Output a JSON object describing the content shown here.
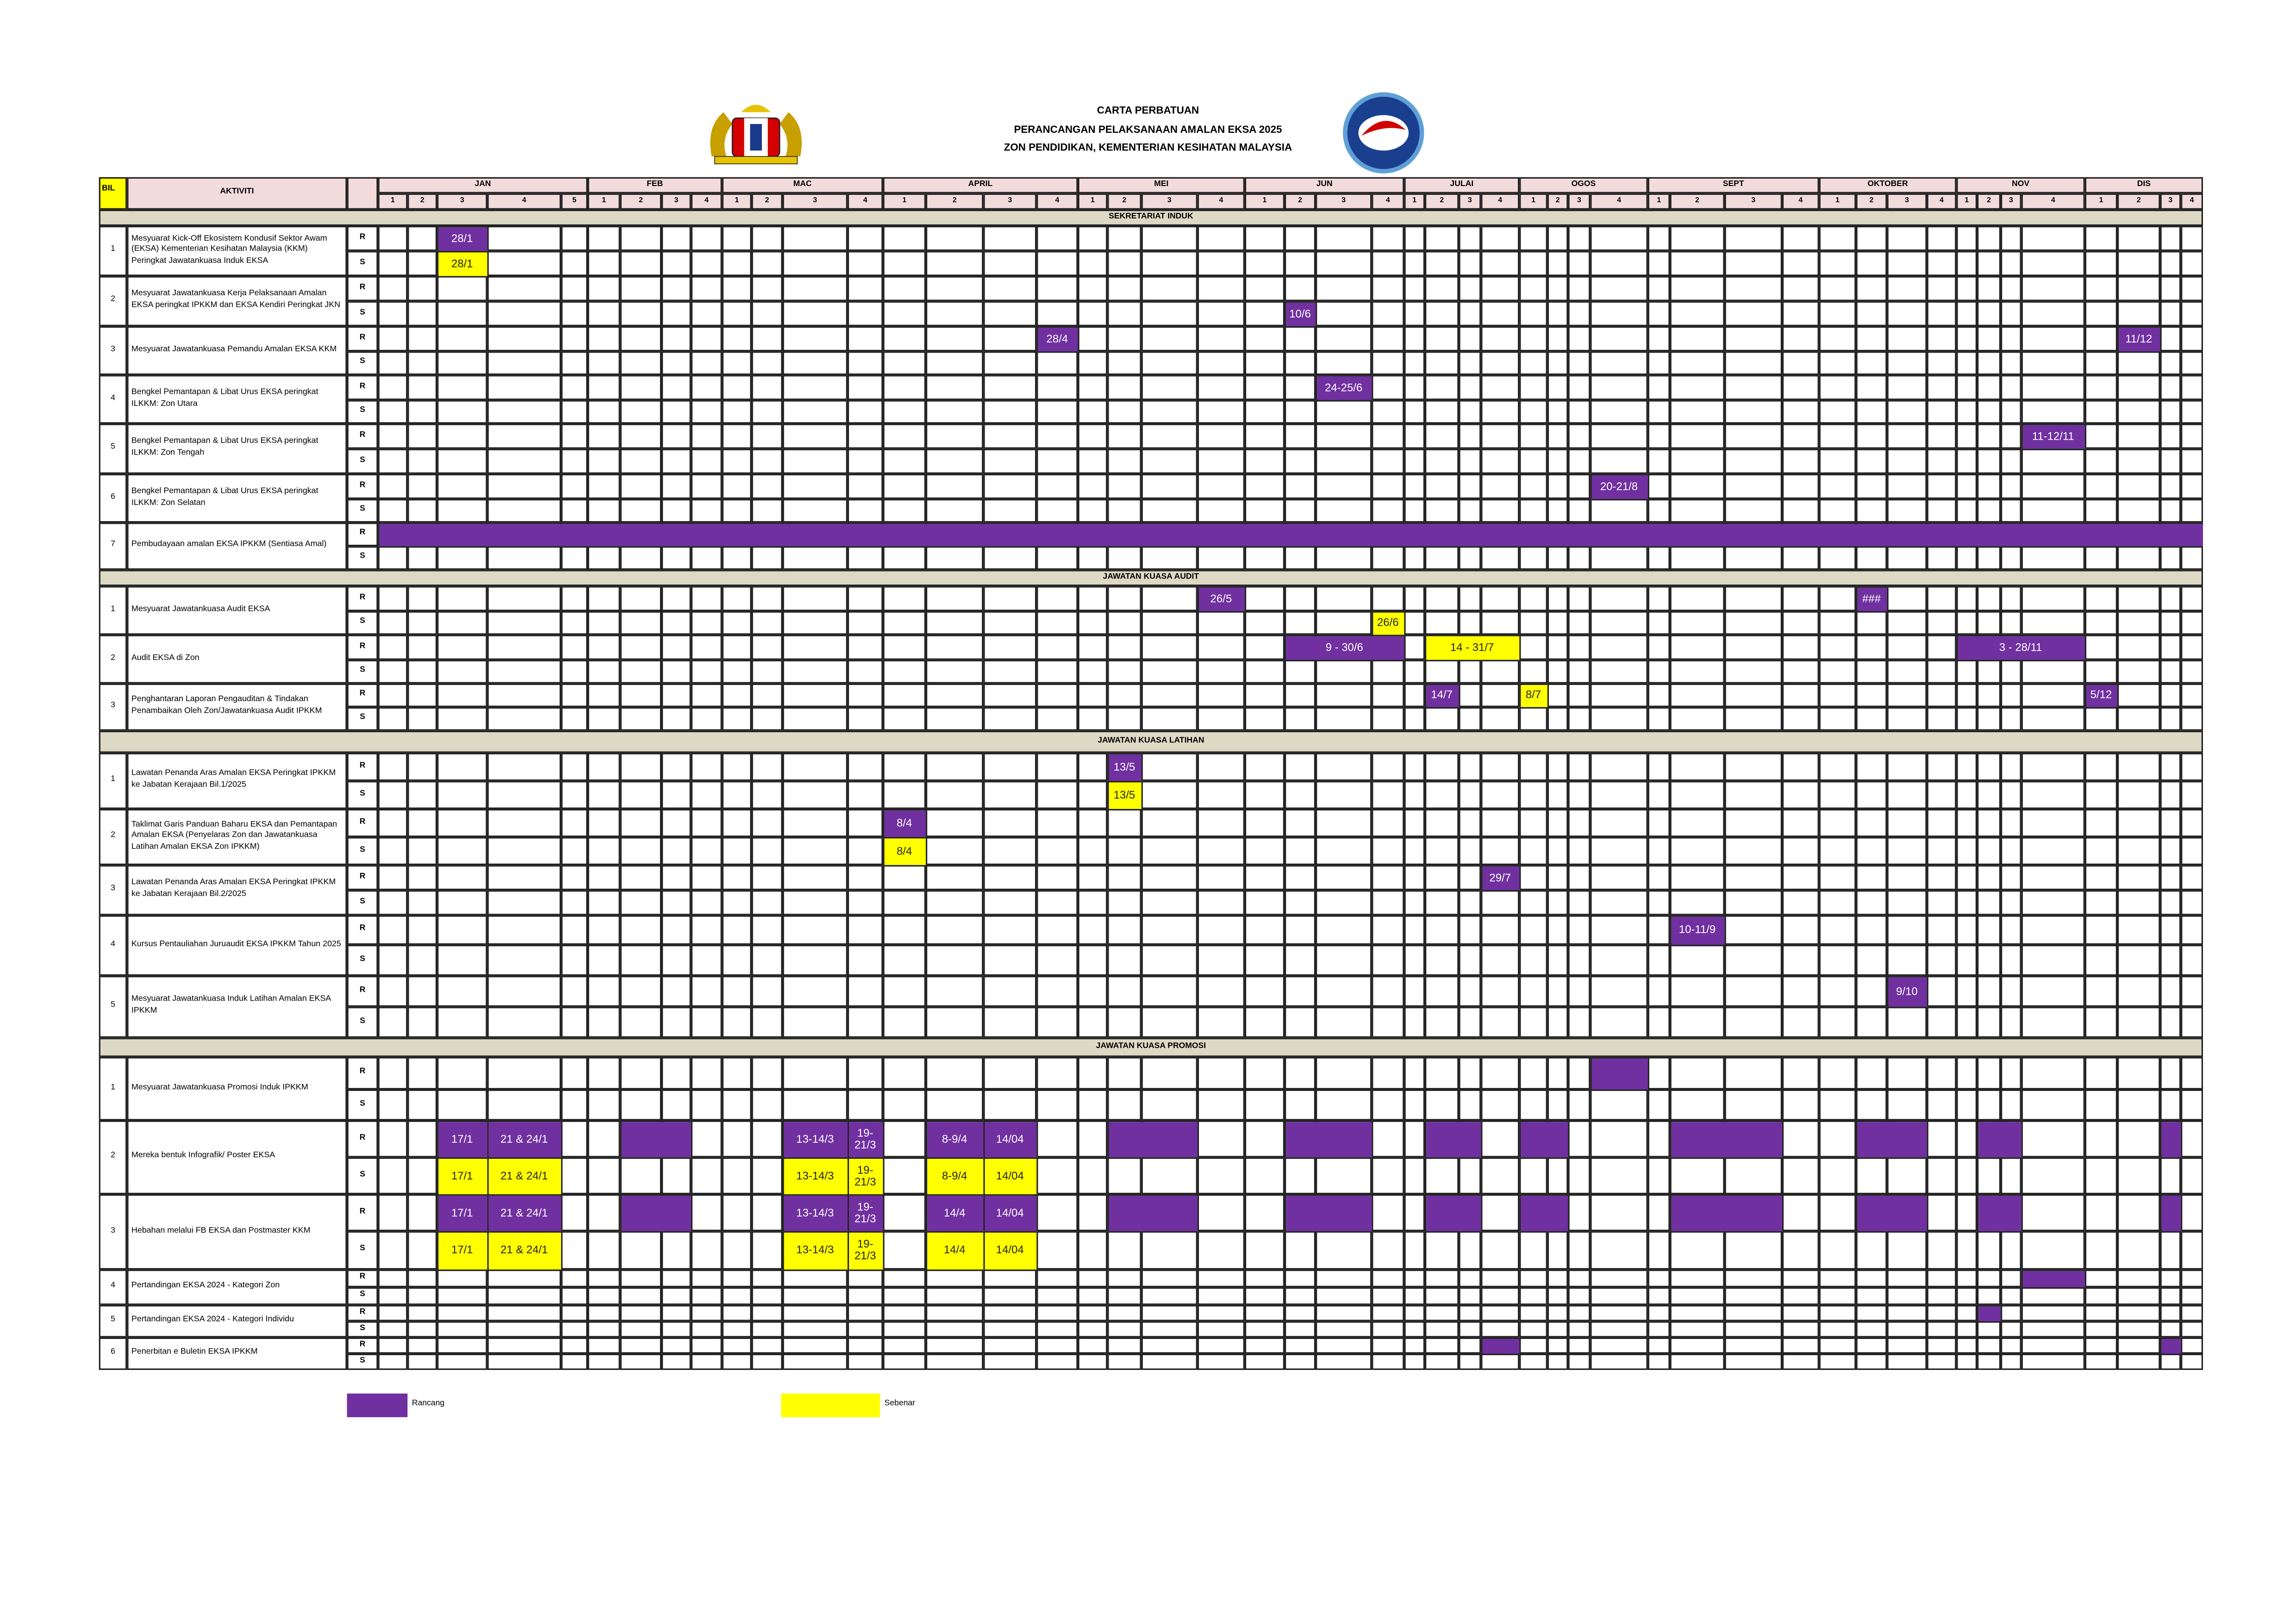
{
  "header": {
    "title": "CARTA PERBATUAN",
    "subtitle": "PERANCANGAN PELAKSANAAN AMALAN EKSA 2025",
    "org": "ZON PENDIDIKAN, KEMENTERIAN KESIHATAN MALAYSIA"
  },
  "table": {
    "columns": {
      "bil": "BIL",
      "activity": "AKTIVITI"
    },
    "months": [
      {
        "name": "JAN",
        "weeks": [
          1,
          2,
          3,
          4,
          5
        ]
      },
      {
        "name": "FEB",
        "weeks": [
          1,
          2,
          3,
          4
        ]
      },
      {
        "name": "MAC",
        "weeks": [
          1,
          2,
          3,
          4
        ]
      },
      {
        "name": "APRIL",
        "weeks": [
          1,
          2,
          3,
          4
        ]
      },
      {
        "name": "MEI",
        "weeks": [
          1,
          2,
          3,
          4
        ]
      },
      {
        "name": "JUN",
        "weeks": [
          1,
          2,
          3,
          4
        ]
      },
      {
        "name": "JULAI",
        "weeks": [
          1,
          2,
          3,
          4
        ]
      },
      {
        "name": "OGOS",
        "weeks": [
          1,
          2,
          3,
          4
        ]
      },
      {
        "name": "SEPT",
        "weeks": [
          1,
          2,
          3,
          4
        ]
      },
      {
        "name": "OKTOBER",
        "weeks": [
          1,
          2,
          3,
          4
        ]
      },
      {
        "name": "NOV",
        "weeks": [
          1,
          2,
          3,
          4
        ]
      },
      {
        "name": "DIS",
        "weeks": [
          1,
          2,
          3,
          4
        ]
      }
    ],
    "row_types": [
      "R",
      "S"
    ],
    "sections": [
      {
        "title": "SEKRETARIAT INDUK",
        "activities": [
          {
            "no": 1,
            "name": "Mesyuarat Kick-Off Ekosistem Kondusif Sektor Awam (EKSA) Kementerian Kesihatan Malaysia (KKM) Peringkat Jawatankuasa Induk EKSA",
            "R": [
              {
                "m": 0,
                "w": 2,
                "label": "28/1",
                "color": "#7030a0"
              }
            ],
            "S": [
              {
                "m": 0,
                "w": 2,
                "label": "28/1",
                "color": "#ffff00"
              }
            ]
          },
          {
            "no": 2,
            "name": "Mesyuarat Jawatankuasa Kerja Pelaksanaan Amalan EKSA peringkat IPKKM dan EKSA Kendiri Peringkat JKN",
            "R": [],
            "S": [
              {
                "m": 5,
                "w": 1,
                "label": "10/6",
                "color": "#7030a0"
              }
            ]
          },
          {
            "no": 3,
            "name": "Mesyuarat Jawatankuasa Pemandu Amalan EKSA KKM",
            "R": [
              {
                "m": 3,
                "w": 3,
                "label": "28/4",
                "color": "#7030a0"
              },
              {
                "m": 11,
                "w": 1,
                "label": "11/12",
                "color": "#7030a0"
              }
            ],
            "S": []
          },
          {
            "no": 4,
            "name": "Bengkel Pemantapan & Libat Urus EKSA peringkat ILKKM: Zon Utara",
            "R": [
              {
                "m": 5,
                "w": 2,
                "label": "24-25/6",
                "color": "#7030a0"
              }
            ],
            "S": []
          },
          {
            "no": 5,
            "name": "Bengkel Pemantapan & Libat Urus EKSA peringkat ILKKM: Zon Tengah",
            "R": [
              {
                "m": 10,
                "w": 3,
                "label": "11-12/11",
                "color": "#7030a0"
              }
            ],
            "S": []
          },
          {
            "no": 6,
            "name": "Bengkel Pemantapan & Libat Urus EKSA peringkat ILKKM: Zon Selatan",
            "R": [
              {
                "m": 7,
                "w": 3,
                "label": "20-21/8",
                "color": "#7030a0"
              }
            ],
            "S": []
          },
          {
            "no": 7,
            "name": "Pembudayaan amalan EKSA IPKKM (Sentiasa Amal)",
            "R": [
              {
                "m": 0,
                "w": 0,
                "span": 49,
                "color": "#7030a0"
              }
            ],
            "S": []
          }
        ]
      },
      {
        "title": "JAWATAN KUASA  AUDIT",
        "activities": [
          {
            "no": 1,
            "name": "Mesyuarat Jawatankuasa Audit EKSA",
            "R": [
              {
                "m": 4,
                "w": 3,
                "label": "26/5",
                "color": "#7030a0"
              },
              {
                "m": 9,
                "w": 1,
                "label": "###",
                "color": "#7030a0"
              }
            ],
            "S": [
              {
                "m": 5,
                "w": 3,
                "label": "26/6",
                "color": "#ffff00"
              }
            ]
          },
          {
            "no": 2,
            "name": "Audit EKSA di Zon",
            "R": [
              {
                "m": 5,
                "w": 1,
                "span": 3,
                "label": "9 - 30/6",
                "color": "#7030a0"
              },
              {
                "m": 6,
                "w": 1,
                "span": 3,
                "label": "14 - 31/7",
                "color": "#ffff00"
              },
              {
                "m": 10,
                "w": 0,
                "span": 4,
                "label": "3 - 28/11",
                "color": "#7030a0"
              }
            ],
            "S": []
          },
          {
            "no": 3,
            "name": "Penghantaran Laporan Pengauditan & Tindakan Penambaikan Oleh Zon/Jawatankuasa  Audit IPKKM",
            "R": [
              {
                "m": 6,
                "w": 1,
                "label": "14/7",
                "color": "#7030a0"
              },
              {
                "m": 7,
                "w": 0,
                "label": "8/7",
                "color": "#ffff00"
              },
              {
                "m": 11,
                "w": 0,
                "label": "5/12",
                "color": "#7030a0"
              }
            ],
            "S": []
          }
        ]
      },
      {
        "title": "JAWATAN KUASA LATIHAN",
        "activities": [
          {
            "no": 1,
            "name": "Lawatan Penanda Aras Amalan EKSA Peringkat IPKKM ke Jabatan Kerajaan Bil.1/2025",
            "R": [
              {
                "m": 4,
                "w": 1,
                "label": "13/5",
                "color": "#7030a0"
              }
            ],
            "S": [
              {
                "m": 4,
                "w": 1,
                "label": "13/5",
                "color": "#ffff00"
              }
            ]
          },
          {
            "no": 2,
            "name": "Taklimat Garis Panduan Baharu EKSA dan Pemantapan Amalan EKSA (Penyelaras Zon dan Jawatankuasa Latihan Amalan EKSA Zon IPKKM)",
            "R": [
              {
                "m": 3,
                "w": 0,
                "label": "8/4",
                "color": "#7030a0"
              }
            ],
            "S": [
              {
                "m": 3,
                "w": 0,
                "label": "8/4",
                "color": "#ffff00"
              }
            ]
          },
          {
            "no": 3,
            "name": "Lawatan Penanda Aras Amalan EKSA Peringkat IPKKM ke Jabatan Kerajaan Bil.2/2025",
            "R": [
              {
                "m": 6,
                "w": 3,
                "label": "29/7",
                "color": "#7030a0"
              }
            ],
            "S": []
          },
          {
            "no": 4,
            "name": "Kursus Pentauliahan Juruaudit EKSA IPKKM Tahun 2025",
            "R": [
              {
                "m": 8,
                "w": 1,
                "label": "10-11/9",
                "color": "#7030a0"
              }
            ],
            "S": []
          },
          {
            "no": 5,
            "name": "Mesyuarat Jawatankuasa Induk Latihan Amalan EKSA IPKKM",
            "R": [
              {
                "m": 9,
                "w": 2,
                "label": "9/10",
                "color": "#7030a0"
              }
            ],
            "S": []
          }
        ]
      },
      {
        "title": "JAWATAN KUASA  PROMOSI",
        "activities": [
          {
            "no": 1,
            "name": "Mesyuarat Jawatankuasa Promosi Induk IPKKM",
            "R": [
              {
                "m": 7,
                "w": 3,
                "color": "#7030a0"
              }
            ],
            "S": []
          },
          {
            "no": 2,
            "name": "Mereka bentuk Infografik/ Poster EKSA",
            "R": [
              {
                "m": 0,
                "w": 2,
                "label": "17/1",
                "color": "#7030a0"
              },
              {
                "m": 0,
                "w": 3,
                "label": "21 & 24/1",
                "color": "#7030a0"
              },
              {
                "m": 1,
                "w": 1,
                "span": 2,
                "color": "#7030a0"
              },
              {
                "m": 2,
                "w": 2,
                "label": "13-14/3",
                "color": "#7030a0"
              },
              {
                "m": 2,
                "w": 3,
                "label": "19-21/3",
                "color": "#7030a0"
              },
              {
                "m": 3,
                "w": 1,
                "label": "8-9/4",
                "color": "#7030a0"
              },
              {
                "m": 3,
                "w": 2,
                "label": "14/04",
                "color": "#7030a0"
              },
              {
                "m": 4,
                "w": 1,
                "span": 2,
                "color": "#7030a0"
              },
              {
                "m": 5,
                "w": 1,
                "span": 2,
                "color": "#7030a0"
              },
              {
                "m": 6,
                "w": 1,
                "span": 2,
                "color": "#7030a0"
              },
              {
                "m": 7,
                "w": 0,
                "span": 2,
                "color": "#7030a0"
              },
              {
                "m": 8,
                "w": 1,
                "span": 2,
                "color": "#7030a0"
              },
              {
                "m": 9,
                "w": 1,
                "span": 2,
                "color": "#7030a0"
              },
              {
                "m": 10,
                "w": 1,
                "span": 2,
                "color": "#7030a0"
              },
              {
                "m": 11,
                "w": 2,
                "color": "#7030a0"
              }
            ],
            "S": [
              {
                "m": 0,
                "w": 2,
                "label": "17/1",
                "color": "#ffff00"
              },
              {
                "m": 0,
                "w": 3,
                "label": "21 & 24/1",
                "color": "#ffff00"
              },
              {
                "m": 2,
                "w": 2,
                "label": "13-14/3",
                "color": "#ffff00"
              },
              {
                "m": 2,
                "w": 3,
                "label": "19-21/3",
                "color": "#ffff00"
              },
              {
                "m": 3,
                "w": 1,
                "label": "8-9/4",
                "color": "#ffff00"
              },
              {
                "m": 3,
                "w": 2,
                "label": "14/04",
                "color": "#ffff00"
              }
            ]
          },
          {
            "no": 3,
            "name": "Hebahan melalui FB EKSA dan Postmaster KKM",
            "R": [
              {
                "m": 0,
                "w": 2,
                "label": "17/1",
                "color": "#7030a0"
              },
              {
                "m": 0,
                "w": 3,
                "label": "21 & 24/1",
                "color": "#7030a0"
              },
              {
                "m": 1,
                "w": 1,
                "span": 2,
                "color": "#7030a0"
              },
              {
                "m": 2,
                "w": 2,
                "label": "13-14/3",
                "color": "#7030a0"
              },
              {
                "m": 2,
                "w": 3,
                "label": "19-21/3",
                "color": "#7030a0"
              },
              {
                "m": 3,
                "w": 1,
                "label": "14/4",
                "color": "#7030a0"
              },
              {
                "m": 3,
                "w": 2,
                "label": "14/04",
                "color": "#7030a0"
              },
              {
                "m": 4,
                "w": 1,
                "span": 2,
                "color": "#7030a0"
              },
              {
                "m": 5,
                "w": 1,
                "span": 2,
                "color": "#7030a0"
              },
              {
                "m": 6,
                "w": 1,
                "span": 2,
                "color": "#7030a0"
              },
              {
                "m": 7,
                "w": 0,
                "span": 2,
                "color": "#7030a0"
              },
              {
                "m": 8,
                "w": 1,
                "span": 2,
                "color": "#7030a0"
              },
              {
                "m": 9,
                "w": 1,
                "span": 2,
                "color": "#7030a0"
              },
              {
                "m": 10,
                "w": 1,
                "span": 2,
                "color": "#7030a0"
              },
              {
                "m": 11,
                "w": 2,
                "color": "#7030a0"
              }
            ],
            "S": [
              {
                "m": 0,
                "w": 2,
                "label": "17/1",
                "color": "#ffff00"
              },
              {
                "m": 0,
                "w": 3,
                "label": "21 & 24/1",
                "color": "#ffff00"
              },
              {
                "m": 2,
                "w": 2,
                "label": "13-14/3",
                "color": "#ffff00"
              },
              {
                "m": 2,
                "w": 3,
                "label": "19-21/3",
                "color": "#ffff00"
              },
              {
                "m": 3,
                "w": 1,
                "label": "14/4",
                "color": "#ffff00"
              },
              {
                "m": 3,
                "w": 2,
                "label": "14/04",
                "color": "#ffff00"
              }
            ]
          },
          {
            "no": 4,
            "name": "Pertandingan EKSA 2024 - Kategori Zon",
            "R": [
              {
                "m": 10,
                "w": 3,
                "color": "#7030a0"
              }
            ],
            "S": []
          },
          {
            "no": 5,
            "name": "Pertandingan EKSA 2024 - Kategori Individu",
            "R": [
              {
                "m": 10,
                "w": 1,
                "color": "#7030a0"
              }
            ],
            "S": []
          },
          {
            "no": 6,
            "name": "Penerbitan e Buletin EKSA IPKKM",
            "R": [
              {
                "m": 6,
                "w": 3,
                "color": "#7030a0"
              },
              {
                "m": 11,
                "w": 2,
                "color": "#7030a0"
              }
            ],
            "S": []
          }
        ]
      }
    ]
  },
  "legend": [
    {
      "label": "Rancang",
      "color": "#7030a0"
    },
    {
      "label": "Sebenar",
      "color": "#ffff00"
    }
  ]
}
